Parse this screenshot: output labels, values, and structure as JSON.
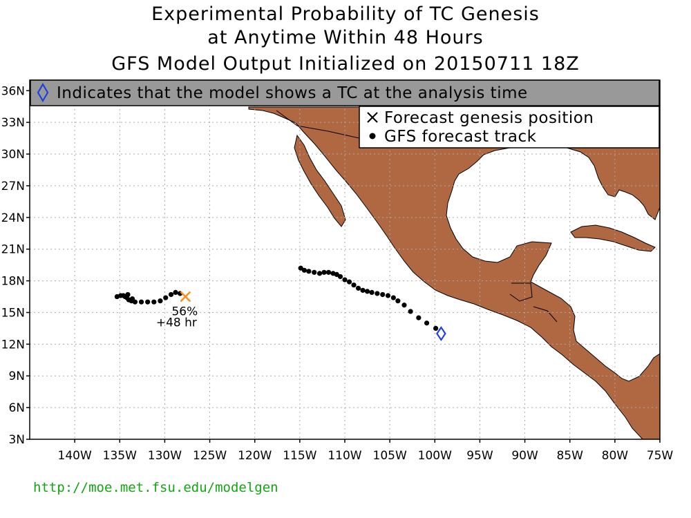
{
  "header": {
    "title_line1": "Experimental Probability of TC Genesis",
    "title_line2": "at Anytime Within 48 Hours",
    "title_line3": "GFS Model Output Initialized on 20150711 18Z"
  },
  "banner": {
    "text": "Indicates that the model shows a TC at the analysis time",
    "icon": "diamond-icon"
  },
  "legend": {
    "items": [
      {
        "icon": "x-mark-icon",
        "label": "Forecast genesis position"
      },
      {
        "icon": "dot-icon",
        "label": "GFS forecast track"
      }
    ]
  },
  "map": {
    "lon_range": [
      -145,
      -75
    ],
    "lat_range": [
      3,
      37
    ],
    "lat_labels": [
      "3N",
      "6N",
      "9N",
      "12N",
      "15N",
      "18N",
      "21N",
      "24N",
      "27N",
      "30N",
      "33N",
      "36N"
    ],
    "lat_values": [
      3,
      6,
      9,
      12,
      15,
      18,
      21,
      24,
      27,
      30,
      33,
      36
    ],
    "lon_labels": [
      "140W",
      "135W",
      "130W",
      "125W",
      "120W",
      "115W",
      "110W",
      "105W",
      "100W",
      "95W",
      "90W",
      "85W",
      "80W",
      "75W"
    ],
    "lon_values": [
      -140,
      -135,
      -130,
      -125,
      -120,
      -115,
      -110,
      -105,
      -100,
      -95,
      -90,
      -85,
      -80,
      -75
    ],
    "grid": true,
    "land_color": "#b06842",
    "ocean_color": "#ffffff"
  },
  "genesis": {
    "probability": "56%",
    "lead_time": "+48 hr",
    "lon": -127.7,
    "lat": 16.5,
    "marker_color": "#ff8c1a"
  },
  "analysis_tc": {
    "lon": -99.3,
    "lat": 13.0,
    "marker_color": "#1f3fe0"
  },
  "tracks": [
    {
      "name": "",
      "points": [
        [
          -99.9,
          13.5
        ],
        [
          -100.9,
          14.0
        ],
        [
          -101.8,
          14.5
        ],
        [
          -102.7,
          15.1
        ],
        [
          -103.4,
          15.7
        ],
        [
          -104.1,
          16.1
        ],
        [
          -104.6,
          16.4
        ],
        [
          -105.2,
          16.6
        ],
        [
          -105.8,
          16.7
        ],
        [
          -106.4,
          16.8
        ],
        [
          -107.0,
          16.9
        ],
        [
          -107.5,
          17.0
        ],
        [
          -108.0,
          17.1
        ],
        [
          -108.5,
          17.3
        ],
        [
          -109.0,
          17.6
        ],
        [
          -109.5,
          17.9
        ],
        [
          -110.0,
          18.1
        ],
        [
          -110.5,
          18.4
        ],
        [
          -110.9,
          18.6
        ],
        [
          -111.3,
          18.7
        ],
        [
          -111.8,
          18.8
        ],
        [
          -112.3,
          18.8
        ],
        [
          -112.8,
          18.7
        ],
        [
          -113.4,
          18.8
        ],
        [
          -114.0,
          18.9
        ],
        [
          -114.5,
          19.0
        ],
        [
          -114.9,
          19.2
        ]
      ]
    },
    {
      "name": "",
      "points": [
        [
          -128.3,
          16.8
        ],
        [
          -128.8,
          16.9
        ],
        [
          -129.3,
          16.7
        ],
        [
          -129.9,
          16.4
        ],
        [
          -130.5,
          16.1
        ],
        [
          -131.2,
          16.0
        ],
        [
          -131.9,
          16.0
        ],
        [
          -132.6,
          16.0
        ],
        [
          -133.3,
          16.0
        ],
        [
          -133.7,
          16.1
        ],
        [
          -134.0,
          16.2
        ],
        [
          -134.2,
          16.4
        ],
        [
          -134.4,
          16.5
        ],
        [
          -134.6,
          16.6
        ],
        [
          -134.9,
          16.6
        ],
        [
          -135.3,
          16.5
        ],
        [
          -134.1,
          16.7
        ],
        [
          -133.6,
          16.3
        ]
      ]
    }
  ],
  "footer": {
    "url": "http://moe.met.fsu.edu/modelgen"
  }
}
